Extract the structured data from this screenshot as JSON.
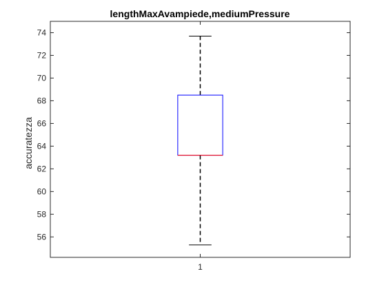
{
  "chart_data": {
    "type": "box",
    "title": "lengthMaxAvampiede,mediumPressure",
    "xlabel": "",
    "ylabel": "accuratezza",
    "categories": [
      "1"
    ],
    "boxes": [
      {
        "category": "1",
        "whisker_low": 55.3,
        "q1": 63.2,
        "median": 63.2,
        "q3": 68.5,
        "whisker_high": 73.7
      }
    ],
    "ylim": [
      54.2,
      75
    ],
    "yticks": [
      56,
      58,
      60,
      62,
      64,
      66,
      68,
      70,
      72,
      74
    ],
    "grid": false,
    "colors": {
      "box": "#0000ff",
      "median": "#ff0000",
      "whisker": "#000000",
      "axis": "#262626"
    }
  }
}
